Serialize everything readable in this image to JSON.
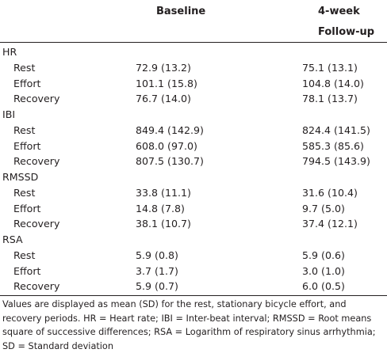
{
  "headers": {
    "baseline": "Baseline",
    "followup_line1": "4-week",
    "followup_line2": "Follow-up"
  },
  "groups": [
    {
      "label": "HR",
      "rows": [
        {
          "label": "Rest",
          "baseline": "72.9 (13.2)",
          "followup": "75.1 (13.1)"
        },
        {
          "label": "Effort",
          "baseline": "101.1 (15.8)",
          "followup": "104.8 (14.0)"
        },
        {
          "label": "Recovery",
          "baseline": "76.7 (14.0)",
          "followup": "78.1 (13.7)"
        }
      ]
    },
    {
      "label": "IBI",
      "rows": [
        {
          "label": "Rest",
          "baseline": "849.4 (142.9)",
          "followup": "824.4 (141.5)"
        },
        {
          "label": "Effort",
          "baseline": "608.0 (97.0)",
          "followup": "585.3 (85.6)"
        },
        {
          "label": "Recovery",
          "baseline": "807.5 (130.7)",
          "followup": "794.5 (143.9)"
        }
      ]
    },
    {
      "label": "RMSSD",
      "rows": [
        {
          "label": "Rest",
          "baseline": "33.8 (11.1)",
          "followup": "31.6 (10.4)"
        },
        {
          "label": "Effort",
          "baseline": "14.8 (7.8)",
          "followup": "9.7 (5.0)"
        },
        {
          "label": "Recovery",
          "baseline": "38.1 (10.7)",
          "followup": "37.4 (12.1)"
        }
      ]
    },
    {
      "label": "RSA",
      "rows": [
        {
          "label": "Rest",
          "baseline": "5.9 (0.8)",
          "followup": "5.9 (0.6)"
        },
        {
          "label": "Effort",
          "baseline": "3.7 (1.7)",
          "followup": "3.0 (1.0)"
        },
        {
          "label": "Recovery",
          "baseline": "5.9 (0.7)",
          "followup": "6.0 (0.5)"
        }
      ]
    }
  ],
  "footnote": "Values are displayed as mean (SD) for the rest, stationary bicycle effort, and recovery periods. HR = Heart rate; IBI = Inter-beat interval; RMSSD = Root means square of successive differences; RSA = Logarithm of respiratory sinus arrhythmia; SD = Standard deviation"
}
